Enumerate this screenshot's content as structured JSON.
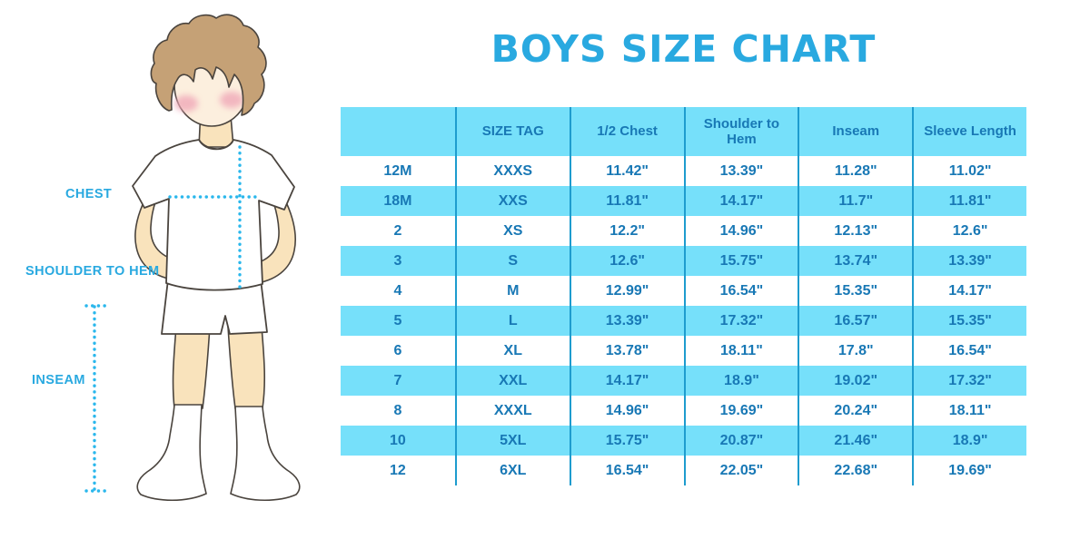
{
  "title": "BOYS SIZE CHART",
  "figure": {
    "labels": {
      "chest": "CHEST",
      "shoulder_to_hem": "SHOULDER TO HEM",
      "inseam": "INSEAM"
    }
  },
  "colors": {
    "title_blue": "#29A9E0",
    "label_blue": "#29A9E0",
    "stripe_blue": "#76E0FA",
    "separator_blue": "#1E9CCE",
    "table_text_blue": "#1878B5",
    "dotted_line_cyan": "#2AB7EC",
    "skin": "#F9E3BC",
    "face": "#FCEFDE",
    "hair": "#C5A176",
    "blush": "#F0A8B8",
    "outline": "#4A443E"
  },
  "chart_data": {
    "type": "table",
    "title": "BOYS SIZE CHART",
    "legend_position": "none",
    "columns": [
      "",
      "SIZE TAG",
      "1/2 Chest",
      "Shoulder to Hem",
      "Inseam",
      "Sleeve Length"
    ],
    "rows": [
      [
        "12M",
        "XXXS",
        "11.42\"",
        "13.39\"",
        "11.28\"",
        "11.02\""
      ],
      [
        "18M",
        "XXS",
        "11.81\"",
        "14.17\"",
        "11.7\"",
        "11.81\""
      ],
      [
        "2",
        "XS",
        "12.2\"",
        "14.96\"",
        "12.13\"",
        "12.6\""
      ],
      [
        "3",
        "S",
        "12.6\"",
        "15.75\"",
        "13.74\"",
        "13.39\""
      ],
      [
        "4",
        "M",
        "12.99\"",
        "16.54\"",
        "15.35\"",
        "14.17\""
      ],
      [
        "5",
        "L",
        "13.39\"",
        "17.32\"",
        "16.57\"",
        "15.35\""
      ],
      [
        "6",
        "XL",
        "13.78\"",
        "18.11\"",
        "17.8\"",
        "16.54\""
      ],
      [
        "7",
        "XXL",
        "14.17\"",
        "18.9\"",
        "19.02\"",
        "17.32\""
      ],
      [
        "8",
        "XXXL",
        "14.96\"",
        "19.69\"",
        "20.24\"",
        "18.11\""
      ],
      [
        "10",
        "5XL",
        "15.75\"",
        "20.87\"",
        "21.46\"",
        "18.9\""
      ],
      [
        "12",
        "6XL",
        "16.54\"",
        "22.05\"",
        "22.68\"",
        "19.69\""
      ]
    ]
  }
}
